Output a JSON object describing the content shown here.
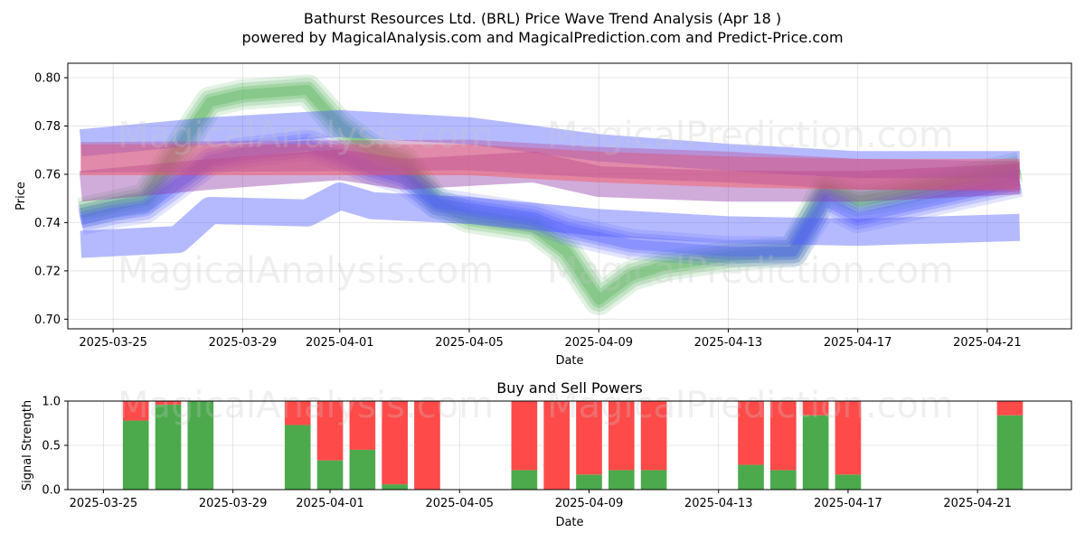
{
  "title_line1": "Bathurst Resources Ltd. (BRL) Price Wave Trend Analysis (Apr 18 )",
  "title_line2": "powered by MagicalAnalysis.com and MagicalPrediction.com and Predict-Price.com",
  "watermarks": [
    "MagicalAnalysis.com",
    "MagicalPrediction.com"
  ],
  "chart_data": [
    {
      "type": "area",
      "title": "Bathurst Resources Ltd. (BRL) Price Wave Trend Analysis (Apr 18 )",
      "xlabel": "Date",
      "ylabel": "Price",
      "ylim": [
        0.696,
        0.806
      ],
      "x_range": [
        "2025-03-23",
        "2025-04-23"
      ],
      "x_ticks": [
        "2025-03-25",
        "2025-03-29",
        "2025-04-01",
        "2025-04-05",
        "2025-04-09",
        "2025-04-13",
        "2025-04-17",
        "2025-04-21"
      ],
      "y_ticks": [
        0.7,
        0.72,
        0.74,
        0.76,
        0.78,
        0.8
      ],
      "grid": true,
      "colors": {
        "green": "#4caf50",
        "blue": "#4f5bff",
        "purple": "#8e3aa8",
        "red": "#ff4d4d",
        "magenta": "#b8509a"
      },
      "series": [
        {
          "color": "green",
          "x": [
            "2025-03-24",
            "2025-03-25",
            "2025-03-26",
            "2025-03-28",
            "2025-03-29",
            "2025-03-31",
            "2025-04-01",
            "2025-04-02",
            "2025-04-03",
            "2025-04-04",
            "2025-04-05",
            "2025-04-06",
            "2025-04-07",
            "2025-04-08",
            "2025-04-09",
            "2025-04-10",
            "2025-04-11",
            "2025-04-12",
            "2025-04-13",
            "2025-04-14",
            "2025-04-15",
            "2025-04-16",
            "2025-04-17",
            "2025-04-18",
            "2025-04-19",
            "2025-04-20",
            "2025-04-21",
            "2025-04-22"
          ],
          "y": [
            0.744,
            0.747,
            0.75,
            0.79,
            0.793,
            0.795,
            0.78,
            0.77,
            0.765,
            0.748,
            0.742,
            0.74,
            0.738,
            0.728,
            0.708,
            0.718,
            0.722,
            0.724,
            0.726,
            0.727,
            0.728,
            0.754,
            0.749,
            0.751,
            0.754,
            0.757,
            0.76,
            0.763
          ]
        },
        {
          "color": "blue",
          "x": [
            "2025-03-24",
            "2025-03-25",
            "2025-03-26",
            "2025-03-28",
            "2025-03-29",
            "2025-03-31",
            "2025-04-01",
            "2025-04-02",
            "2025-04-03",
            "2025-04-04",
            "2025-04-05",
            "2025-04-06",
            "2025-04-07",
            "2025-04-08",
            "2025-04-09",
            "2025-04-10",
            "2025-04-11",
            "2025-04-12",
            "2025-04-13",
            "2025-04-14",
            "2025-04-15",
            "2025-04-16",
            "2025-04-17",
            "2025-04-18",
            "2025-04-19",
            "2025-04-20",
            "2025-04-21",
            "2025-04-22"
          ],
          "y": [
            0.741,
            0.744,
            0.746,
            0.766,
            0.769,
            0.772,
            0.768,
            0.762,
            0.758,
            0.748,
            0.746,
            0.744,
            0.742,
            0.737,
            0.734,
            0.731,
            0.73,
            0.729,
            0.728,
            0.728,
            0.728,
            0.749,
            0.742,
            0.745,
            0.748,
            0.751,
            0.754,
            0.757
          ]
        },
        {
          "color": "blue",
          "x": [
            "2025-03-24",
            "2025-03-28",
            "2025-04-01",
            "2025-04-05",
            "2025-04-09",
            "2025-04-13",
            "2025-04-17",
            "2025-04-22"
          ],
          "y": [
            0.773,
            0.778,
            0.781,
            0.778,
            0.771,
            0.767,
            0.764,
            0.764
          ]
        },
        {
          "color": "blue",
          "x": [
            "2025-03-24",
            "2025-03-27",
            "2025-03-28",
            "2025-03-31",
            "2025-04-01",
            "2025-04-02",
            "2025-04-05",
            "2025-04-09",
            "2025-04-13",
            "2025-04-17",
            "2025-04-22"
          ],
          "y": [
            0.731,
            0.733,
            0.745,
            0.744,
            0.751,
            0.747,
            0.745,
            0.74,
            0.737,
            0.736,
            0.738
          ]
        },
        {
          "color": "purple",
          "x": [
            "2025-03-24",
            "2025-03-28",
            "2025-04-01",
            "2025-04-03",
            "2025-04-07",
            "2025-04-09",
            "2025-04-13",
            "2025-04-17",
            "2025-04-22"
          ],
          "y": [
            0.755,
            0.76,
            0.764,
            0.76,
            0.763,
            0.757,
            0.755,
            0.755,
            0.758
          ]
        },
        {
          "color": "red",
          "x": [
            "2025-03-24",
            "2025-04-05",
            "2025-04-09",
            "2025-04-13",
            "2025-04-17",
            "2025-04-22"
          ],
          "y": [
            0.766,
            0.766,
            0.763,
            0.761,
            0.76,
            0.76
          ]
        },
        {
          "color": "magenta",
          "x": [
            "2025-03-24",
            "2025-04-05",
            "2025-04-09",
            "2025-04-13",
            "2025-04-17",
            "2025-04-22"
          ],
          "y": [
            0.767,
            0.768,
            0.765,
            0.763,
            0.76,
            0.759
          ]
        }
      ]
    },
    {
      "type": "bar",
      "title": "Buy and Sell Powers",
      "xlabel": "Date",
      "ylabel": "Signal Strength",
      "ylim": [
        0,
        1.0
      ],
      "x_range": [
        "2025-03-23",
        "2025-04-23"
      ],
      "x_ticks": [
        "2025-03-25",
        "2025-03-29",
        "2025-04-01",
        "2025-04-05",
        "2025-04-09",
        "2025-04-13",
        "2025-04-17",
        "2025-04-21"
      ],
      "y_ticks": [
        0.0,
        0.5,
        1.0
      ],
      "grid": true,
      "colors": {
        "buy": "#4caa4c",
        "sell": "#ff4a4a"
      },
      "series": [
        {
          "name": "Buy",
          "color": "buy",
          "values": [
            0.78,
            0.96,
            1.0,
            0.73,
            0.33,
            0.45,
            0.06,
            0.0,
            0.22,
            0.0,
            0.17,
            0.22,
            0.22,
            0.28,
            0.22,
            0.84,
            0.17,
            0.84
          ]
        },
        {
          "name": "Sell",
          "color": "sell",
          "values": [
            0.22,
            0.04,
            0.0,
            0.27,
            0.67,
            0.55,
            0.94,
            1.0,
            0.78,
            1.0,
            0.83,
            0.78,
            0.78,
            0.72,
            0.78,
            0.16,
            0.83,
            0.16
          ]
        }
      ],
      "categories": [
        "2025-03-26",
        "2025-03-27",
        "2025-03-28",
        "2025-03-31",
        "2025-04-01",
        "2025-04-02",
        "2025-04-03",
        "2025-04-04",
        "2025-04-07",
        "2025-04-08",
        "2025-04-09",
        "2025-04-10",
        "2025-04-11",
        "2025-04-14",
        "2025-04-15",
        "2025-04-16",
        "2025-04-17",
        "2025-04-22"
      ]
    }
  ]
}
